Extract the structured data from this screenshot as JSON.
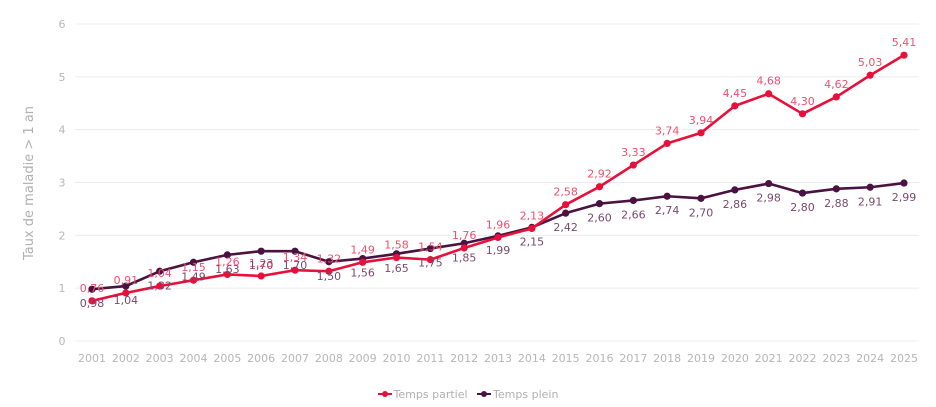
{
  "chart_data": {
    "type": "line",
    "title": "",
    "xlabel": "",
    "ylabel": "Taux de maladie > 1 an",
    "ylim": [
      0,
      6
    ],
    "yticks": [
      "0",
      "1",
      "2",
      "3",
      "4",
      "5",
      "6"
    ],
    "grid": true,
    "legend_position": "bottom",
    "x": [
      "2001",
      "2002",
      "2003",
      "2004",
      "2005",
      "2006",
      "2007",
      "2008",
      "2009",
      "2010",
      "2011",
      "2012",
      "2013",
      "2014",
      "2015",
      "2016",
      "2017",
      "2018",
      "2019",
      "2020",
      "2021",
      "2022",
      "2023",
      "2024",
      "2025"
    ],
    "series": [
      {
        "name": "Temps partiel",
        "color": "#e8103a",
        "label_color": "#f0506e",
        "values": [
          0.76,
          0.91,
          1.04,
          1.15,
          1.26,
          1.23,
          1.34,
          1.32,
          1.49,
          1.58,
          1.54,
          1.76,
          1.96,
          2.13,
          2.58,
          2.92,
          3.33,
          3.74,
          3.94,
          4.45,
          4.68,
          4.3,
          4.62,
          5.03,
          5.41
        ],
        "labels": [
          "0,76",
          "0,91",
          "1,04",
          "1,15",
          "1,26",
          "1,23",
          "1,34",
          "1,32",
          "1,49",
          "1,58",
          "1,54",
          "1,76",
          "1,96",
          "2,13",
          "2,58",
          "2,92",
          "3,33",
          "3,74",
          "3,94",
          "4,45",
          "4,68",
          "4,30",
          "4,62",
          "5,03",
          "5,41"
        ]
      },
      {
        "name": "Temps plein",
        "color": "#4a1240",
        "label_color": "#7a4a6e",
        "values": [
          0.98,
          1.04,
          1.32,
          1.49,
          1.63,
          1.7,
          1.7,
          1.5,
          1.56,
          1.65,
          1.75,
          1.85,
          1.99,
          2.15,
          2.42,
          2.6,
          2.66,
          2.74,
          2.7,
          2.86,
          2.98,
          2.8,
          2.88,
          2.91,
          2.99
        ],
        "labels": [
          "0,98",
          "1,04",
          "1,32",
          "1,49",
          "1,63",
          "1,70",
          "1,70",
          "1,50",
          "1,56",
          "1,65",
          "1,75",
          "1,85",
          "1,99",
          "2,15",
          "2,42",
          "2,60",
          "2,66",
          "2,74",
          "2,70",
          "2,86",
          "2,98",
          "2,80",
          "2,88",
          "2,91",
          "2,99"
        ]
      }
    ]
  }
}
